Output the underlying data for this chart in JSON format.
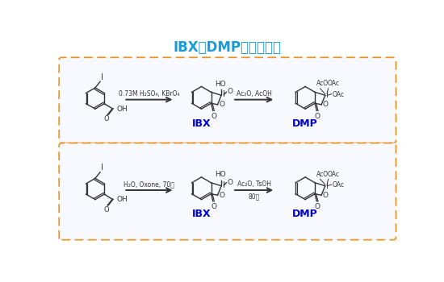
{
  "title": "IBX和DMP的合成方法",
  "title_color": "#1a9cd8",
  "title_fontsize": 12,
  "bg_color": "#ffffff",
  "box_color": "#e8962a",
  "row1_reagent1": "0.73M H₂SO₄, KBrO₄",
  "row1_reagent2": "Ac₂O, AcOH",
  "row2_reagent1": "H₂O, Oxone, 70度",
  "row2_reagent2": "Ac₂O, TsOH",
  "row2_subreagent2": "80度",
  "label_IBX": "IBX",
  "label_DMP": "DMP",
  "label_color": "#0000cc",
  "arrow_color": "#333333",
  "struct_color": "#333333",
  "text_color": "#333333"
}
